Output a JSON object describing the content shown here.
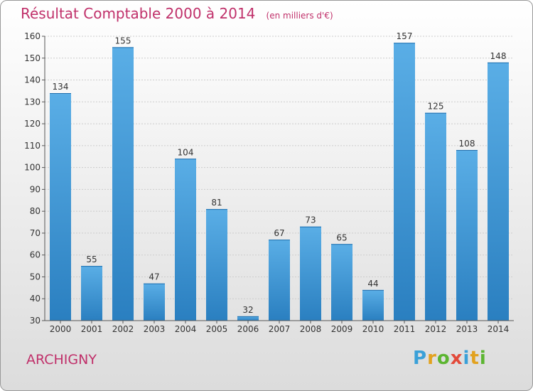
{
  "title": "Résultat Comptable 2000 à 2014",
  "subtitle": "(en milliers d'€)",
  "commune": "ARCHIGNY",
  "logo": {
    "text": "Proxiti",
    "letters": [
      {
        "ch": "P",
        "color": "#3aa0d8"
      },
      {
        "ch": "r",
        "color": "#e2a21f"
      },
      {
        "ch": "o",
        "color": "#5cb531"
      },
      {
        "ch": "x",
        "color": "#e24a3a"
      },
      {
        "ch": "i",
        "color": "#3aa0d8"
      },
      {
        "ch": "t",
        "color": "#e2a21f"
      },
      {
        "ch": "i",
        "color": "#5cb531"
      }
    ]
  },
  "colors": {
    "title": "#c0306a",
    "bar_light": "#5aaee6",
    "bar_dark": "#2a7fc0",
    "grid": "#cccccc"
  },
  "chart_data": {
    "type": "bar",
    "title": "Résultat Comptable 2000 à 2014",
    "subtitle": "(en milliers d'€)",
    "categories": [
      "2000",
      "2001",
      "2002",
      "2003",
      "2004",
      "2005",
      "2006",
      "2007",
      "2008",
      "2009",
      "2010",
      "2011",
      "2012",
      "2013",
      "2014"
    ],
    "values": [
      134,
      55,
      155,
      47,
      104,
      81,
      32,
      67,
      73,
      65,
      44,
      157,
      125,
      108,
      148
    ],
    "ylim": [
      30,
      160
    ],
    "yticks": [
      30,
      40,
      50,
      60,
      70,
      80,
      90,
      100,
      110,
      120,
      130,
      140,
      150,
      160
    ],
    "grid": true,
    "xlabel": "",
    "ylabel": ""
  }
}
